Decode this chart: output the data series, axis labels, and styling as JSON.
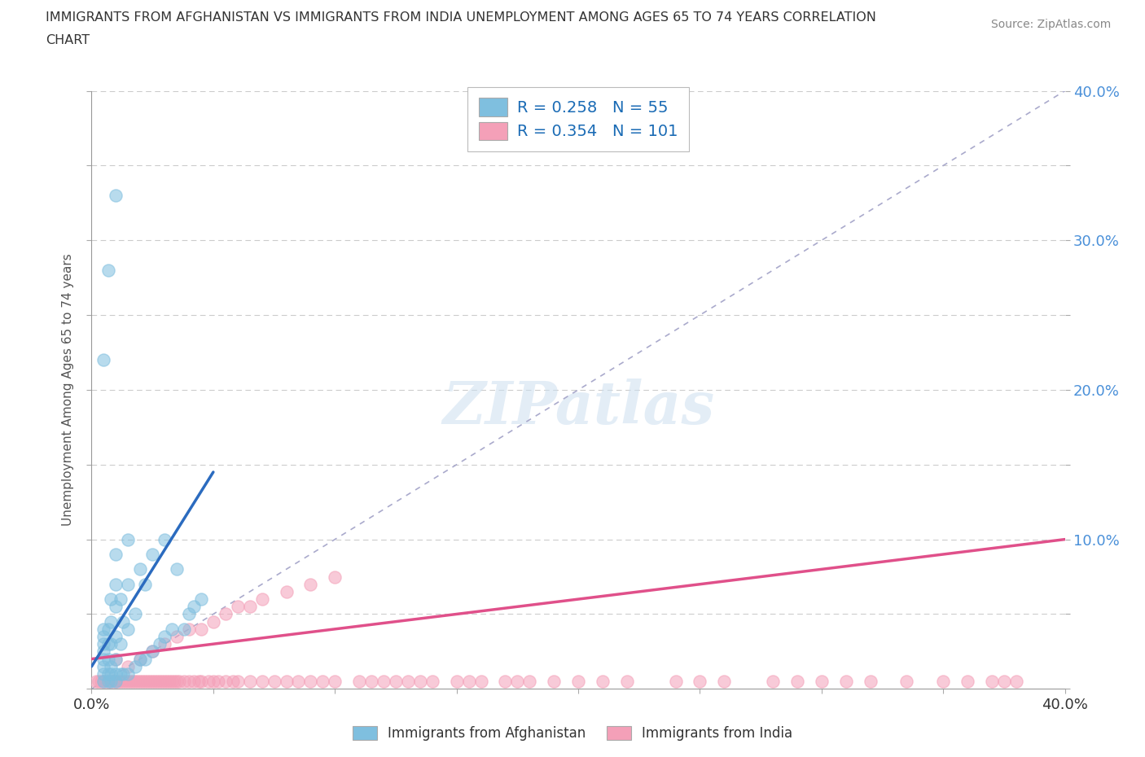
{
  "title_line1": "IMMIGRANTS FROM AFGHANISTAN VS IMMIGRANTS FROM INDIA UNEMPLOYMENT AMONG AGES 65 TO 74 YEARS CORRELATION",
  "title_line2": "CHART",
  "source": "Source: ZipAtlas.com",
  "ylabel": "Unemployment Among Ages 65 to 74 years",
  "xlim": [
    0,
    0.4
  ],
  "ylim": [
    0,
    0.4
  ],
  "color_afghanistan": "#7fbfdf",
  "color_india": "#f4a0b8",
  "R_afghanistan": 0.258,
  "N_afghanistan": 55,
  "R_india": 0.354,
  "N_india": 101,
  "legend_text_color": "#1a6bb5",
  "watermark": "ZIPatlas",
  "background_color": "#ffffff",
  "grid_color": "#cccccc",
  "axis_line_color": "#999999",
  "afg_scatter_x": [
    0.005,
    0.005,
    0.005,
    0.005,
    0.005,
    0.005,
    0.005,
    0.005,
    0.007,
    0.007,
    0.007,
    0.007,
    0.007,
    0.008,
    0.008,
    0.008,
    0.008,
    0.008,
    0.008,
    0.01,
    0.01,
    0.01,
    0.01,
    0.01,
    0.01,
    0.01,
    0.012,
    0.012,
    0.012,
    0.013,
    0.013,
    0.015,
    0.015,
    0.015,
    0.015,
    0.018,
    0.018,
    0.02,
    0.02,
    0.022,
    0.022,
    0.025,
    0.025,
    0.028,
    0.03,
    0.03,
    0.033,
    0.035,
    0.038,
    0.04,
    0.042,
    0.045,
    0.005,
    0.007,
    0.01
  ],
  "afg_scatter_y": [
    0.005,
    0.01,
    0.015,
    0.02,
    0.025,
    0.03,
    0.035,
    0.04,
    0.005,
    0.01,
    0.02,
    0.03,
    0.04,
    0.005,
    0.01,
    0.015,
    0.03,
    0.045,
    0.06,
    0.005,
    0.01,
    0.02,
    0.035,
    0.055,
    0.07,
    0.09,
    0.01,
    0.03,
    0.06,
    0.01,
    0.045,
    0.01,
    0.04,
    0.07,
    0.1,
    0.015,
    0.05,
    0.02,
    0.08,
    0.02,
    0.07,
    0.025,
    0.09,
    0.03,
    0.035,
    0.1,
    0.04,
    0.08,
    0.04,
    0.05,
    0.055,
    0.06,
    0.22,
    0.28,
    0.33
  ],
  "ind_scatter_x": [
    0.002,
    0.003,
    0.004,
    0.005,
    0.006,
    0.007,
    0.008,
    0.009,
    0.01,
    0.01,
    0.011,
    0.012,
    0.013,
    0.014,
    0.015,
    0.015,
    0.016,
    0.017,
    0.018,
    0.019,
    0.02,
    0.02,
    0.021,
    0.022,
    0.023,
    0.024,
    0.025,
    0.025,
    0.026,
    0.027,
    0.028,
    0.029,
    0.03,
    0.03,
    0.031,
    0.032,
    0.033,
    0.034,
    0.035,
    0.035,
    0.036,
    0.038,
    0.04,
    0.04,
    0.042,
    0.044,
    0.045,
    0.045,
    0.048,
    0.05,
    0.05,
    0.052,
    0.055,
    0.055,
    0.058,
    0.06,
    0.06,
    0.065,
    0.065,
    0.07,
    0.07,
    0.075,
    0.08,
    0.08,
    0.085,
    0.09,
    0.09,
    0.095,
    0.1,
    0.1,
    0.11,
    0.115,
    0.12,
    0.125,
    0.13,
    0.135,
    0.14,
    0.15,
    0.155,
    0.16,
    0.17,
    0.175,
    0.18,
    0.19,
    0.2,
    0.21,
    0.22,
    0.24,
    0.25,
    0.26,
    0.28,
    0.29,
    0.3,
    0.31,
    0.32,
    0.335,
    0.35,
    0.36,
    0.37,
    0.375,
    0.38
  ],
  "ind_scatter_y": [
    0.005,
    0.005,
    0.005,
    0.005,
    0.005,
    0.005,
    0.005,
    0.005,
    0.005,
    0.02,
    0.005,
    0.005,
    0.005,
    0.005,
    0.005,
    0.015,
    0.005,
    0.005,
    0.005,
    0.005,
    0.005,
    0.02,
    0.005,
    0.005,
    0.005,
    0.005,
    0.005,
    0.025,
    0.005,
    0.005,
    0.005,
    0.005,
    0.005,
    0.03,
    0.005,
    0.005,
    0.005,
    0.005,
    0.005,
    0.035,
    0.005,
    0.005,
    0.005,
    0.04,
    0.005,
    0.005,
    0.005,
    0.04,
    0.005,
    0.005,
    0.045,
    0.005,
    0.005,
    0.05,
    0.005,
    0.005,
    0.055,
    0.005,
    0.055,
    0.005,
    0.06,
    0.005,
    0.005,
    0.065,
    0.005,
    0.005,
    0.07,
    0.005,
    0.005,
    0.075,
    0.005,
    0.005,
    0.005,
    0.005,
    0.005,
    0.005,
    0.005,
    0.005,
    0.005,
    0.005,
    0.005,
    0.005,
    0.005,
    0.005,
    0.005,
    0.005,
    0.005,
    0.005,
    0.005,
    0.005,
    0.005,
    0.005,
    0.005,
    0.005,
    0.005,
    0.005,
    0.005,
    0.005,
    0.005,
    0.005,
    0.005
  ],
  "afg_trend_x": [
    0.0,
    0.05
  ],
  "afg_trend_y": [
    0.015,
    0.145
  ],
  "ind_trend_x": [
    0.0,
    0.4
  ],
  "ind_trend_y": [
    0.02,
    0.1
  ]
}
